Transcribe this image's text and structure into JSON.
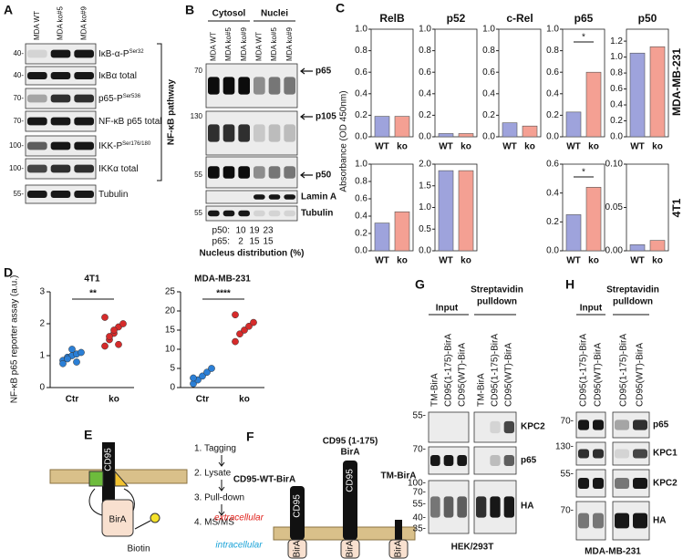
{
  "panel_a": {
    "label": "A",
    "lanes": [
      "MDA WT",
      "MDA ko#5",
      "MDA ko#9"
    ],
    "rows": [
      {
        "marker": "40-",
        "label": "IκB-α-P",
        "sup": "Ser32"
      },
      {
        "marker": "40-",
        "label": "IκBα total"
      },
      {
        "marker": "70-",
        "label": "p65-P",
        "sup": "Ser536"
      },
      {
        "marker": "70-",
        "label": "NF-κB p65 total"
      },
      {
        "marker": "100-",
        "label": "IKK-P",
        "sup": "Ser176/180"
      },
      {
        "marker": "100-",
        "label": "IKKα total"
      },
      {
        "marker": "55-",
        "label": "Tubulin"
      }
    ],
    "bracket": "NF-κB pathway"
  },
  "panel_b": {
    "label": "B",
    "headers": [
      "Cytosol",
      "Nuclei"
    ],
    "lanes": [
      "MDA WT",
      "MDA ko#5",
      "MDA ko#9",
      "MDA WT",
      "MDA ko#5",
      "MDA ko#9"
    ],
    "markers": [
      "70",
      "130",
      "55",
      "55"
    ],
    "arrow_labels": [
      "p65",
      "p105",
      "p50"
    ],
    "loading_labels": [
      "Lamin A",
      "Tubulin"
    ],
    "distribution": [
      {
        "label": "p50:",
        "values": [
          10,
          19,
          23
        ]
      },
      {
        "label": "p65:",
        "values": [
          2,
          15,
          15
        ]
      }
    ],
    "caption": "Nucleus distribution (%)"
  },
  "panel_c": {
    "label": "C",
    "y_label": "Absorbance (OD 450nm)",
    "colors": [
      "#9ea3dc",
      "#f4a093"
    ],
    "columns": [
      {
        "title": "RelB",
        "title_color": "#000000"
      },
      {
        "title": "p52",
        "title_color": "#000000"
      },
      {
        "title": "c-Rel",
        "title_color": "#000000"
      },
      {
        "title": "p65",
        "title_color": "#e0201b"
      },
      {
        "title": "p50",
        "title_color": "#e0201b"
      }
    ],
    "rows": [
      {
        "label": "MDA-MB-231",
        "charts": [
          {
            "type": "bar",
            "categories": [
              "WT",
              "ko"
            ],
            "values": [
              0.19,
              0.19
            ],
            "ylim": [
              0,
              1
            ],
            "yticks": [
              {
                "value": 0,
                "label": "0.0"
              },
              0.2,
              0.4,
              0.6,
              0.8,
              {
                "value": 1,
                "label": "1.0"
              }
            ]
          },
          {
            "type": "bar",
            "categories": [
              "WT",
              "ko"
            ],
            "values": [
              0.03,
              0.03
            ],
            "ylim": [
              0,
              1
            ],
            "yticks": [
              {
                "value": 0,
                "label": "0.0"
              },
              0.2,
              0.4,
              0.6,
              0.8,
              {
                "value": 1,
                "label": "1.0"
              }
            ]
          },
          {
            "type": "bar",
            "categories": [
              "WT",
              "ko"
            ],
            "values": [
              0.13,
              0.1
            ],
            "ylim": [
              0,
              1
            ],
            "yticks": [
              {
                "value": 0,
                "label": "0.0"
              },
              0.2,
              0.4,
              0.6,
              0.8,
              {
                "value": 1,
                "label": "1.0"
              }
            ]
          },
          {
            "type": "bar",
            "categories": [
              "WT",
              "ko"
            ],
            "values": [
              0.23,
              0.6
            ],
            "ylim": [
              0,
              1
            ],
            "yticks": [
              {
                "value": 0,
                "label": "0.0"
              },
              0.2,
              0.4,
              0.6,
              0.8,
              {
                "value": 1,
                "label": "1.0"
              }
            ],
            "significance": "*"
          },
          {
            "type": "bar",
            "categories": [
              "WT",
              "ko"
            ],
            "values": [
              1.05,
              1.13
            ],
            "ylim": [
              0,
              1.35
            ],
            "yticks": [
              {
                "value": 0,
                "label": "0.0"
              },
              0.2,
              0.4,
              0.6,
              0.8,
              {
                "value": 1,
                "label": "1.0"
              },
              1.2
            ]
          }
        ]
      },
      {
        "label": "4T1",
        "charts": [
          {
            "type": "bar",
            "categories": [
              "WT",
              "ko"
            ],
            "values": [
              0.32,
              0.45
            ],
            "ylim": [
              0,
              1
            ],
            "yticks": [
              {
                "value": 0,
                "label": "0.0"
              },
              0.2,
              0.4,
              0.6,
              0.8,
              {
                "value": 1,
                "label": "1.0"
              }
            ]
          },
          {
            "type": "bar",
            "categories": [
              "WT",
              "ko"
            ],
            "values": [
              1.85,
              1.85
            ],
            "ylim": [
              0,
              2
            ],
            "yticks": [
              {
                "value": 0,
                "label": "0.0"
              },
              0.5,
              {
                "value": 1,
                "label": "1.0"
              },
              1.5,
              {
                "value": 2,
                "label": "2.0"
              }
            ]
          },
          null,
          {
            "type": "bar",
            "categories": [
              "WT",
              "ko"
            ],
            "values": [
              0.25,
              0.44
            ],
            "ylim": [
              0,
              0.6
            ],
            "yticks": [
              {
                "value": 0,
                "label": "0.0"
              },
              0.2,
              0.4,
              0.6
            ],
            "significance": "*"
          },
          {
            "type": "bar",
            "categories": [
              "WT",
              "ko"
            ],
            "values": [
              0.007,
              0.012
            ],
            "ylim": [
              0,
              0.1
            ],
            "yticks": [
              {
                "value": 0,
                "label": "0.00"
              },
              0.05,
              {
                "value": 0.1,
                "label": "0.10"
              }
            ]
          }
        ]
      }
    ]
  },
  "panel_d": {
    "label": "D",
    "y_label": "NF-κB p65 reporter assay (a.u.)",
    "charts": [
      {
        "type": "scatter",
        "title": "4T1",
        "categories": [
          "Ctr",
          "ko"
        ],
        "groups": [
          {
            "color": "#2b7fd6",
            "values": [
              0.85,
              0.95,
              1.0,
              1.05,
              1.1,
              0.75,
              0.9,
              1.2,
              0.8
            ]
          },
          {
            "color": "#d62b2b",
            "values": [
              1.3,
              1.5,
              1.7,
              1.9,
              2.0,
              2.2,
              1.6,
              1.8,
              1.35
            ]
          }
        ],
        "ylim": [
          0,
          3
        ],
        "yticks": [
          0,
          1,
          2,
          3
        ],
        "significance": "**"
      },
      {
        "type": "scatter",
        "title": "MDA-MB-231",
        "categories": [
          "Ctr",
          "ko"
        ],
        "groups": [
          {
            "color": "#2b7fd6",
            "values": [
              1,
              2,
              3,
              4,
              5,
              2.5
            ]
          },
          {
            "color": "#d62b2b",
            "values": [
              12,
              14,
              15,
              16,
              17,
              19
            ]
          }
        ],
        "ylim": [
          0,
          25
        ],
        "yticks": [
          0,
          5,
          10,
          15,
          20,
          25
        ],
        "significance": "****"
      }
    ]
  },
  "panel_e": {
    "label": "E",
    "receptor": "CD95",
    "tag": "BirA",
    "ligand": "Biotin",
    "steps": [
      "1. Tagging",
      "2. Lysate",
      "3. Pull-down",
      "4. MS/MS"
    ]
  },
  "panel_f": {
    "label": "F",
    "wt_label": "CD95-WT-BirA",
    "trunc_label": [
      "CD95 (1-175)",
      "BirA"
    ],
    "tm_label": "TM-BirA",
    "extracellular": "extracellular",
    "intracellular": "intracellular",
    "bars": [
      "CD95",
      "CD95"
    ],
    "tags": [
      "BirA",
      "BirA",
      "BirA"
    ]
  },
  "panel_g": {
    "label": "G",
    "input": "Input",
    "pulldown": [
      "Streptavidin",
      "pulldown"
    ],
    "lanes": [
      "TM-BirA",
      "CD95(1-175)-BirA",
      "CD95(WT)-BirA",
      "TM-BirA",
      "CD95(1-175)-BirA",
      "CD95(WT)-BirA"
    ],
    "markers": [
      "55-",
      "70-",
      "100-",
      "70-",
      "55-",
      "40-",
      "35-"
    ],
    "bands": [
      "KPC2",
      "p65",
      "HA"
    ],
    "cell_line": "HEK/293T"
  },
  "panel_h": {
    "label": "H",
    "input": "Input",
    "pulldown": [
      "Streptavidin",
      "pulldown"
    ],
    "lanes": [
      "CD95(1-175)-BirA",
      "CD95(WT)-BirA",
      "CD95(1-175)-BirA",
      "CD95(WT)-BirA"
    ],
    "markers": [
      "70-",
      "130-",
      "55-",
      "70-"
    ],
    "bands": [
      "p65",
      "KPC1",
      "KPC2",
      "HA"
    ],
    "cell_line": "MDA-MB-231"
  }
}
